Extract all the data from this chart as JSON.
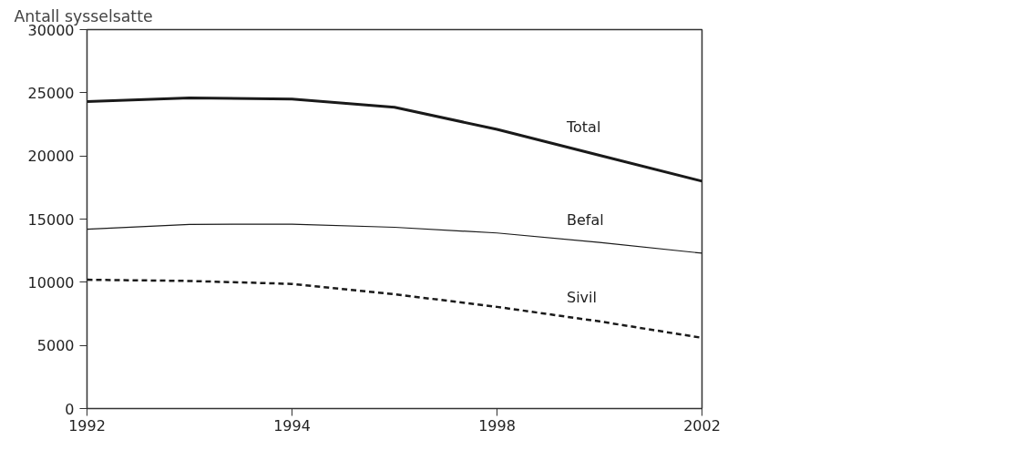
{
  "chart_data": {
    "type": "line",
    "ylabel": "Antall sysselsatte",
    "categories": [
      "1992",
      null,
      "1994",
      null,
      "1998",
      null,
      "2002"
    ],
    "series": [
      {
        "name": "Total",
        "color": "#1a1a1a",
        "line_style": "solid",
        "values": [
          24300,
          24600,
          24500,
          23850,
          22100,
          20050,
          18000
        ]
      },
      {
        "name": "Befal",
        "color": "#1a1a1a",
        "line_style": "solid",
        "values": [
          14200,
          14580,
          14600,
          14350,
          13900,
          13150,
          12300
        ]
      },
      {
        "name": "Sivil",
        "color": "#1a1a1a",
        "line_style": "dashed",
        "values": [
          10200,
          10100,
          9870,
          9050,
          8050,
          6900,
          5600
        ]
      }
    ],
    "ylim": [
      0,
      30000
    ],
    "yticks": [
      0,
      5000,
      10000,
      15000,
      20000,
      25000,
      30000
    ],
    "grid": false,
    "legend": false,
    "marker": "none"
  }
}
